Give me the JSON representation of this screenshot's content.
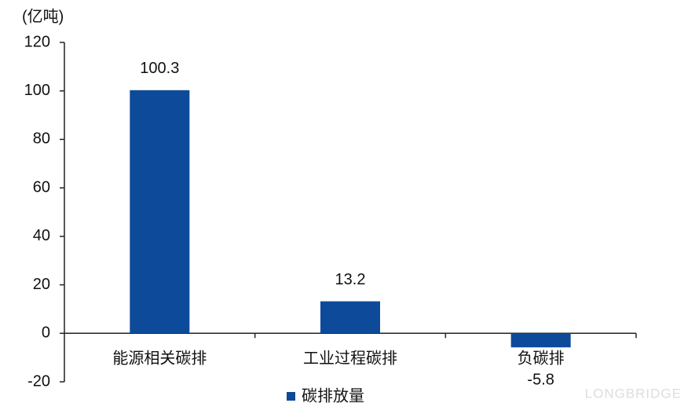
{
  "chart_data": {
    "type": "bar",
    "y_unit_label": "(亿吨)",
    "categories": [
      "能源相关碳排",
      "工业过程碳排",
      "负碳排"
    ],
    "series": [
      {
        "name": "碳排放量",
        "color": "#0d4a9a",
        "values": [
          100.3,
          13.2,
          -5.8
        ]
      }
    ],
    "ylim": [
      -20,
      120
    ],
    "yticks": [
      -20,
      0,
      20,
      40,
      60,
      80,
      100,
      120
    ],
    "grid": false,
    "legend": "bottom",
    "watermark": "LONGBRIDGE"
  }
}
